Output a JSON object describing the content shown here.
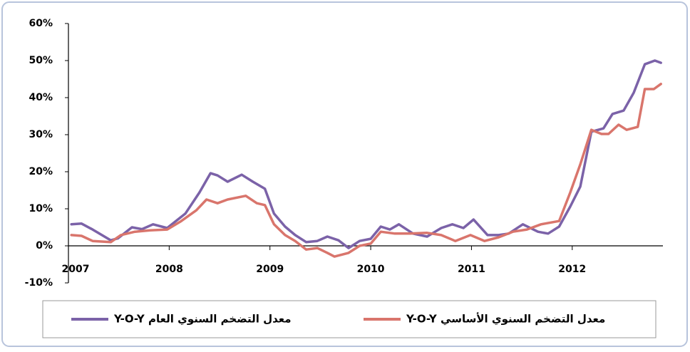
{
  "chart_data": {
    "type": "line",
    "xlim": [
      2007,
      2012.9
    ],
    "xticks": [
      2007,
      2008,
      2009,
      2010,
      2011,
      2012
    ],
    "ylim": [
      -10,
      60
    ],
    "yticks": [
      {
        "value": 60,
        "label": "60%"
      },
      {
        "value": 50,
        "label": "50%"
      },
      {
        "value": 40,
        "label": "40%"
      },
      {
        "value": 30,
        "label": "30%"
      },
      {
        "value": 20,
        "label": "20%"
      },
      {
        "value": 10,
        "label": "10%"
      },
      {
        "value": 0,
        "label": "0%"
      },
      {
        "value": -10,
        "label": "-10%"
      }
    ],
    "grid": false,
    "legend": "bottom",
    "series": [
      {
        "name": "معدل التضخم السنوي العام Y-O-Y",
        "color": "#7b62a8",
        "x": [
          2007.03,
          2007.13,
          2007.24,
          2007.42,
          2007.49,
          2007.63,
          2007.73,
          2007.84,
          2007.98,
          2008.16,
          2008.3,
          2008.41,
          2008.48,
          2008.58,
          2008.72,
          2008.83,
          2008.95,
          2009.04,
          2009.15,
          2009.25,
          2009.36,
          2009.47,
          2009.57,
          2009.68,
          2009.78,
          2009.89,
          2010.0,
          2010.1,
          2010.19,
          2010.28,
          2010.42,
          2010.56,
          2010.7,
          2010.81,
          2010.92,
          2011.02,
          2011.16,
          2011.27,
          2011.37,
          2011.51,
          2011.66,
          2011.76,
          2011.87,
          2011.98,
          2012.08,
          2012.19,
          2012.31,
          2012.4,
          2012.51,
          2012.61,
          2012.72,
          2012.82,
          2012.88
        ],
        "values": [
          5.8,
          6,
          4.4,
          1.5,
          2,
          5,
          4.5,
          5.8,
          4.8,
          8.7,
          14.4,
          19.6,
          19,
          17.3,
          19.2,
          17.3,
          15.4,
          8.7,
          5.2,
          2.9,
          1,
          1.3,
          2.5,
          1.5,
          -0.6,
          1.3,
          1.9,
          5.2,
          4.4,
          5.8,
          3.3,
          2.5,
          4.8,
          5.8,
          4.8,
          7.1,
          2.9,
          2.9,
          3.3,
          5.8,
          3.8,
          3.3,
          5.2,
          10.6,
          16,
          30.8,
          31.7,
          35.6,
          36.5,
          41.3,
          49,
          50,
          49.4
        ]
      },
      {
        "name": "معدل التضخم السنوي الأساسي Y-O-Y",
        "color": "#d9756c",
        "x": [
          2007.03,
          2007.13,
          2007.24,
          2007.42,
          2007.52,
          2007.66,
          2007.81,
          2007.98,
          2008.12,
          2008.27,
          2008.37,
          2008.48,
          2008.58,
          2008.76,
          2008.87,
          2008.95,
          2009.04,
          2009.15,
          2009.25,
          2009.36,
          2009.47,
          2009.57,
          2009.64,
          2009.78,
          2009.89,
          2010.0,
          2010.1,
          2010.24,
          2010.39,
          2010.56,
          2010.7,
          2010.84,
          2010.99,
          2011.13,
          2011.27,
          2011.41,
          2011.55,
          2011.69,
          2011.87,
          2011.98,
          2012.08,
          2012.19,
          2012.29,
          2012.36,
          2012.46,
          2012.54,
          2012.65,
          2012.72,
          2012.81,
          2012.88
        ],
        "values": [
          2.9,
          2.7,
          1.3,
          1,
          2.9,
          3.8,
          4.2,
          4.4,
          6.7,
          9.6,
          12.5,
          11.5,
          12.5,
          13.5,
          11.5,
          11,
          5.8,
          2.9,
          1.3,
          -1,
          -0.6,
          -1.9,
          -2.9,
          -1.9,
          0,
          0.6,
          3.8,
          3.3,
          3.3,
          3.5,
          2.9,
          1.3,
          2.9,
          1.3,
          2.3,
          3.8,
          4.4,
          5.8,
          6.7,
          14.4,
          22,
          31.3,
          30.2,
          30.2,
          32.7,
          31.3,
          32.1,
          42.3,
          42.3,
          43.7
        ]
      }
    ]
  }
}
